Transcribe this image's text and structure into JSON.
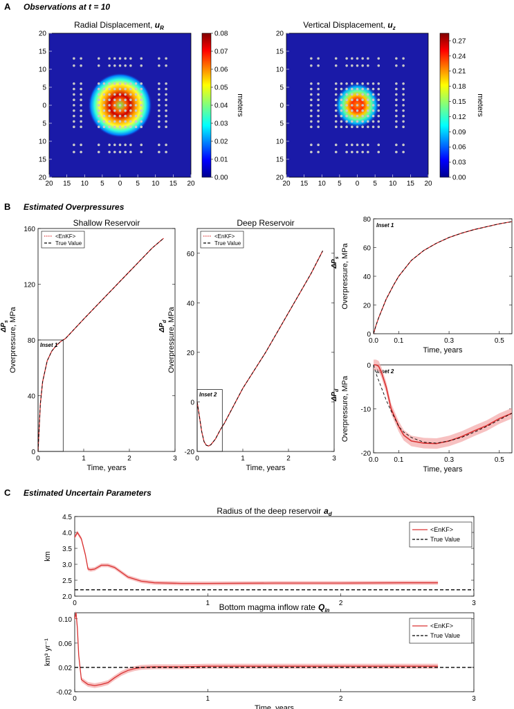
{
  "colors": {
    "enkf": "#d93030",
    "enkf_band": "#f4a6a6",
    "truth": "#000000",
    "station": "#c8c8c8",
    "map_bg": "#1a1aa8"
  },
  "panel_a": {
    "letter": "A",
    "title": "Observations at t = 10",
    "maps": [
      {
        "title": "Radial Displacement,",
        "symbol": "u",
        "subscript": "R",
        "colorbar_label": "meters",
        "colorbar_ticks": [
          "0.08",
          "0.07",
          "0.06",
          "0.05",
          "0.04",
          "0.03",
          "0.02",
          "0.01",
          "0.00"
        ],
        "yticks": [
          "20",
          "15",
          "10",
          "5",
          "0",
          "5",
          "10",
          "15",
          "20"
        ],
        "xticks": [
          "20",
          "15",
          "10",
          "5",
          "0",
          "5",
          "10",
          "15",
          "20"
        ]
      },
      {
        "title": "Vertical Displacement,",
        "symbol": "u",
        "subscript": "z",
        "colorbar_label": "meters",
        "colorbar_ticks": [
          "0.27",
          "0.24",
          "0.21",
          "0.18",
          "0.15",
          "0.12",
          "0.09",
          "0.06",
          "0.03",
          "0.00"
        ],
        "yticks": [
          "20",
          "15",
          "10",
          "5",
          "0",
          "5",
          "10",
          "15",
          "20"
        ],
        "xticks": [
          "20",
          "15",
          "10",
          "5",
          "0",
          "5",
          "10",
          "15",
          "20"
        ]
      }
    ]
  },
  "panel_b": {
    "letter": "B",
    "title": "Estimated Overpressures",
    "legend": {
      "enkf": "<EnKF>",
      "truth": "True Value"
    },
    "ylabel": "Overpressure, MPa",
    "xlabel": "Time, years",
    "sym_s": "ΔP",
    "sub_s": "s",
    "sym_d": "ΔP",
    "sub_d": "d"
  },
  "panel_c": {
    "letter": "C",
    "title": "Estimated Uncertain Parameters",
    "legend": {
      "enkf": "<EnKF>",
      "truth": "True Value"
    },
    "xlabel": "Time, years"
  },
  "chart_data": [
    {
      "type": "line",
      "title": "Shallow Reservoir",
      "xlabel": "Time, years",
      "ylabel": "Overpressure, MPa",
      "xlim": [
        0,
        3
      ],
      "ylim": [
        0,
        160
      ],
      "xticks": [
        0,
        1,
        2,
        3
      ],
      "yticks": [
        0,
        40,
        80,
        120,
        160
      ],
      "series": [
        {
          "name": "<EnKF>",
          "x": [
            0,
            0.05,
            0.1,
            0.2,
            0.3,
            0.4,
            0.5,
            0.6,
            0.8,
            1.0,
            1.5,
            2.0,
            2.5,
            2.75
          ],
          "y": [
            0,
            34,
            50,
            65,
            72,
            76,
            79,
            81,
            88,
            95,
            112,
            129,
            146,
            153
          ]
        },
        {
          "name": "True Value",
          "x": [
            0,
            0.05,
            0.1,
            0.2,
            0.3,
            0.4,
            0.5,
            0.6,
            0.8,
            1.0,
            1.5,
            2.0,
            2.5,
            2.75
          ],
          "y": [
            0,
            34,
            50,
            65,
            72,
            76,
            79,
            81,
            88,
            95,
            112,
            129,
            146,
            153
          ]
        }
      ],
      "annotations": [
        {
          "text": "Inset 1",
          "x_range": [
            0,
            0.55
          ],
          "y_range": [
            0,
            80
          ]
        }
      ]
    },
    {
      "type": "line",
      "title": "Deep Reservoir",
      "xlabel": "Time, years",
      "ylabel": "Overpressure, MPa",
      "xlim": [
        0,
        3
      ],
      "ylim": [
        -20,
        70
      ],
      "xticks": [
        0,
        1,
        2,
        3
      ],
      "yticks": [
        -20,
        0,
        20,
        40,
        60
      ],
      "series": [
        {
          "name": "<EnKF>",
          "x": [
            0,
            0.05,
            0.1,
            0.15,
            0.2,
            0.25,
            0.3,
            0.4,
            0.5,
            0.6,
            0.8,
            1.0,
            1.5,
            2.0,
            2.5,
            2.75
          ],
          "y": [
            0,
            -6,
            -12,
            -16,
            -17.5,
            -17.8,
            -17.3,
            -15,
            -11.5,
            -8.5,
            -1.5,
            5.5,
            20,
            36,
            52,
            61
          ]
        },
        {
          "name": "True Value",
          "x": [
            0,
            0.05,
            0.1,
            0.15,
            0.2,
            0.25,
            0.3,
            0.4,
            0.5,
            0.6,
            0.8,
            1.0,
            1.5,
            2.0,
            2.5,
            2.75
          ],
          "y": [
            0,
            -6,
            -12,
            -16,
            -17.5,
            -17.8,
            -17.3,
            -15,
            -11.5,
            -8.5,
            -1.5,
            5.5,
            20,
            36,
            52,
            61
          ]
        }
      ],
      "annotations": [
        {
          "text": "Inset 2",
          "x_range": [
            0,
            0.55
          ],
          "y_range": [
            -20,
            5
          ]
        }
      ]
    },
    {
      "type": "line",
      "title": "Inset 1",
      "xlabel": "Time, years",
      "ylabel": "Overpressure, MPa",
      "xlim": [
        0,
        0.55
      ],
      "ylim": [
        0,
        80
      ],
      "xticks": [
        0.0,
        0.1,
        0.3,
        0.5
      ],
      "yticks": [
        0,
        20,
        40,
        60,
        80
      ],
      "series": [
        {
          "name": "<EnKF>",
          "x": [
            0,
            0.01,
            0.02,
            0.05,
            0.08,
            0.1,
            0.15,
            0.2,
            0.25,
            0.3,
            0.35,
            0.4,
            0.45,
            0.5,
            0.55
          ],
          "y": [
            0,
            6,
            11,
            24,
            34,
            40,
            51,
            58,
            63,
            67,
            70,
            72.5,
            74.5,
            76.5,
            78
          ]
        },
        {
          "name": "True Value",
          "x": [
            0,
            0.01,
            0.02,
            0.05,
            0.08,
            0.1,
            0.15,
            0.2,
            0.25,
            0.3,
            0.35,
            0.4,
            0.45,
            0.5,
            0.55
          ],
          "y": [
            0,
            6,
            11,
            24,
            34,
            40,
            51,
            58,
            63,
            67,
            70,
            72.5,
            74.5,
            76.5,
            78
          ]
        }
      ]
    },
    {
      "type": "line",
      "title": "Inset 2",
      "xlabel": "Time, years",
      "ylabel": "Overpressure, MPa",
      "xlim": [
        0,
        0.55
      ],
      "ylim": [
        -20,
        0
      ],
      "xticks": [
        0.0,
        0.1,
        0.3,
        0.5
      ],
      "yticks": [
        -20,
        -10,
        0
      ],
      "series": [
        {
          "name": "<EnKF>",
          "x": [
            0,
            0.01,
            0.02,
            0.03,
            0.05,
            0.07,
            0.1,
            0.12,
            0.15,
            0.2,
            0.25,
            0.3,
            0.35,
            0.4,
            0.45,
            0.5,
            0.55
          ],
          "y": [
            0,
            0,
            -0.3,
            -1.5,
            -5,
            -10,
            -14,
            -16,
            -17.3,
            -17.8,
            -17.9,
            -17.3,
            -16.3,
            -15,
            -13.8,
            -12.2,
            -11
          ]
        },
        {
          "name": "True Value",
          "x": [
            0,
            0.01,
            0.02,
            0.03,
            0.05,
            0.07,
            0.1,
            0.12,
            0.15,
            0.2,
            0.25,
            0.3,
            0.35,
            0.4,
            0.45,
            0.5,
            0.55
          ],
          "y": [
            0,
            -2,
            -3.5,
            -5,
            -8,
            -10.5,
            -14,
            -15.3,
            -16.5,
            -17.6,
            -17.8,
            -17.3,
            -16.5,
            -15.3,
            -14,
            -12.5,
            -11
          ]
        }
      ]
    },
    {
      "type": "line",
      "title": "Radius of the deep reservoir",
      "title_symbol": "a",
      "title_subscript": "d",
      "xlabel": "",
      "ylabel": "km",
      "xlim": [
        0,
        3
      ],
      "ylim": [
        2.0,
        4.5
      ],
      "xticks": [
        0,
        1,
        2,
        3
      ],
      "yticks": [
        2.0,
        2.5,
        3.0,
        3.5,
        4.0,
        4.5
      ],
      "ytick_labels": [
        "2.0",
        "2.5",
        "3.0",
        "3.5",
        "4.0",
        "4.5"
      ],
      "legend_position": "top-right",
      "series": [
        {
          "name": "<EnKF>",
          "x": [
            0,
            0.02,
            0.05,
            0.08,
            0.1,
            0.12,
            0.15,
            0.2,
            0.25,
            0.3,
            0.35,
            0.4,
            0.5,
            0.6,
            0.8,
            1.0,
            1.5,
            2.0,
            2.5,
            2.73
          ],
          "y": [
            3.85,
            4.0,
            3.8,
            3.3,
            2.85,
            2.83,
            2.85,
            2.97,
            2.97,
            2.9,
            2.75,
            2.6,
            2.47,
            2.42,
            2.4,
            2.4,
            2.41,
            2.41,
            2.42,
            2.42
          ]
        },
        {
          "name": "True Value",
          "x": [
            0,
            3
          ],
          "y": [
            2.2,
            2.2
          ]
        }
      ]
    },
    {
      "type": "line",
      "title": "Bottom magma inflow rate",
      "title_symbol": "Q",
      "title_subscript": "in",
      "xlabel": "Time, years",
      "ylabel": "km³ yr⁻¹",
      "xlim": [
        0,
        3
      ],
      "ylim": [
        -0.02,
        0.11
      ],
      "xticks": [
        0,
        1,
        2,
        3
      ],
      "yticks": [
        -0.02,
        0.02,
        0.06,
        0.1
      ],
      "ytick_labels": [
        "-0.02",
        "0.02",
        "0.06",
        "0.10"
      ],
      "legend_position": "top-right",
      "series": [
        {
          "name": "<EnKF>",
          "x": [
            0,
            0.01,
            0.02,
            0.03,
            0.05,
            0.08,
            0.1,
            0.15,
            0.2,
            0.25,
            0.3,
            0.35,
            0.4,
            0.45,
            0.5,
            0.6,
            0.8,
            1.0,
            1.5,
            2.0,
            2.5,
            2.73
          ],
          "y": [
            0.1,
            0.11,
            0.085,
            0.04,
            0.0,
            -0.005,
            -0.008,
            -0.01,
            -0.008,
            -0.005,
            0.003,
            0.01,
            0.015,
            0.018,
            0.02,
            0.021,
            0.021,
            0.022,
            0.022,
            0.022,
            0.022,
            0.022
          ]
        },
        {
          "name": "True Value",
          "x": [
            0,
            3
          ],
          "y": [
            0.02,
            0.02
          ]
        }
      ]
    }
  ]
}
